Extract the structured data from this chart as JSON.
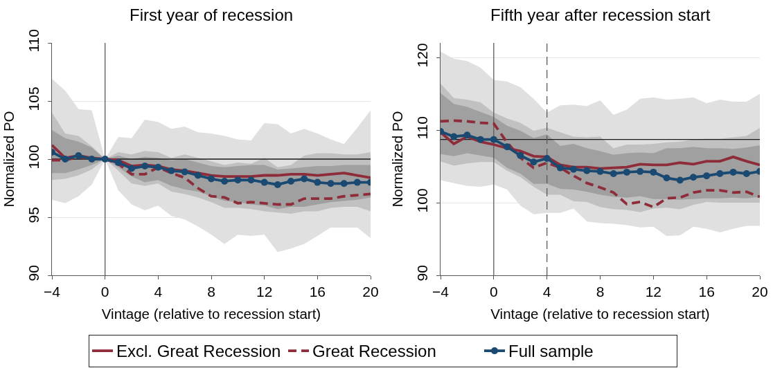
{
  "chart_data": [
    {
      "type": "line",
      "title": "First year of recession",
      "xlabel": "Vintage (relative to recession start)",
      "ylabel": "Normalized PO",
      "x": [
        -4,
        -3,
        -2,
        -1,
        0,
        1,
        2,
        3,
        4,
        5,
        6,
        7,
        8,
        9,
        10,
        11,
        12,
        13,
        14,
        15,
        16,
        17,
        18,
        19,
        20
      ],
      "xlim": [
        -4,
        20
      ],
      "xticks": [
        {
          "value": -4,
          "label": "−4"
        },
        0,
        4,
        8,
        12,
        16,
        20
      ],
      "ylim": [
        90,
        110
      ],
      "yticks": [
        90,
        95,
        100,
        105,
        110
      ],
      "grid": "y",
      "legend": "bottom",
      "ref_lines": [
        {
          "axis": "y",
          "value": 100,
          "color": "#1a1a1a",
          "line_style": "solid"
        },
        {
          "axis": "x",
          "value": 0,
          "color": "#5a5a5a",
          "line_style": "solid"
        }
      ],
      "series": [
        {
          "type": "area",
          "color": "#e0e0e0",
          "values": [
            null,
            null,
            null,
            null,
            null,
            null,
            null,
            null,
            null,
            null,
            null,
            null,
            null,
            null,
            null,
            null,
            null,
            null,
            null,
            null,
            null,
            null,
            null,
            null,
            null
          ],
          "upper": [
            106.9,
            105.9,
            104.3,
            104.2,
            100,
            101.9,
            101.8,
            103.4,
            103.2,
            102.6,
            102.8,
            102.3,
            102.2,
            102.0,
            101.7,
            101.6,
            103.1,
            103.0,
            102.2,
            102.6,
            102.2,
            101.7,
            101.3,
            102.7,
            104.2
          ],
          "lower": [
            96.5,
            96.2,
            96.8,
            97.8,
            100,
            97.3,
            96.1,
            95.6,
            96.0,
            95.1,
            94.8,
            94.2,
            93.5,
            92.7,
            93.5,
            93.4,
            93.5,
            92.0,
            92.3,
            92.7,
            93.4,
            94.1,
            94.1,
            94.1,
            93.2
          ]
        },
        {
          "type": "area",
          "color": "#c1c1c1",
          "values": [
            null,
            null,
            null,
            null,
            null,
            null,
            null,
            null,
            null,
            null,
            null,
            null,
            null,
            null,
            null,
            null,
            null,
            null,
            null,
            null,
            null,
            null,
            null,
            null,
            null
          ],
          "upper": [
            104.0,
            102.2,
            102.0,
            101.1,
            100,
            100.6,
            100.4,
            100.7,
            100.6,
            100.1,
            100.4,
            100.1,
            99.8,
            99.5,
            99.7,
            99.6,
            100.1,
            99.3,
            99.5,
            100.3,
            100.5,
            100.5,
            100.4,
            100.4,
            100.6
          ],
          "lower": [
            98.2,
            98.3,
            98.6,
            99.1,
            100,
            99.0,
            97.9,
            97.7,
            97.9,
            97.2,
            97.0,
            96.7,
            96.3,
            95.8,
            95.8,
            95.7,
            95.5,
            95.4,
            95.3,
            95.5,
            95.5,
            95.8,
            95.9,
            95.9,
            95.5
          ]
        },
        {
          "type": "area",
          "color": "#a0a0a0",
          "values": [
            null,
            null,
            null,
            null,
            null,
            null,
            null,
            null,
            null,
            null,
            null,
            null,
            null,
            null,
            null,
            null,
            null,
            null,
            null,
            null,
            null,
            null,
            null,
            null,
            null
          ],
          "upper": [
            102.5,
            101.8,
            101.5,
            101.0,
            100,
            100.3,
            100.0,
            100.2,
            100.1,
            99.9,
            100.0,
            99.7,
            99.4,
            99.3,
            99.4,
            99.5,
            99.5,
            99.1,
            99.2,
            99.3,
            99.4,
            99.4,
            99.5,
            99.5,
            99.5
          ],
          "lower": [
            98.8,
            98.8,
            99.1,
            99.5,
            100,
            99.3,
            98.5,
            98.0,
            98.2,
            97.7,
            97.4,
            97.2,
            96.8,
            96.4,
            96.3,
            96.1,
            96.0,
            95.7,
            95.9,
            95.9,
            96.1,
            96.3,
            96.4,
            96.5,
            96.7
          ]
        },
        {
          "name": "Excl. Great Recession",
          "color": "#8e2c3a",
          "line_style": "solid",
          "values": [
            101.2,
            100.1,
            100.3,
            100.1,
            100,
            99.9,
            99.4,
            99.5,
            99.4,
            99.1,
            99.0,
            98.8,
            98.6,
            98.5,
            98.5,
            98.5,
            98.6,
            98.6,
            98.7,
            98.7,
            98.6,
            98.7,
            98.8,
            98.6,
            98.4
          ]
        },
        {
          "name": "Great Recession",
          "color": "#8e2c3a",
          "line_style": "dashed",
          "values": [
            99.9,
            99.9,
            100.2,
            100,
            100,
            99.6,
            98.7,
            98.7,
            99.3,
            98.8,
            98.4,
            97.5,
            96.8,
            96.7,
            96.2,
            96.3,
            96.2,
            96.1,
            96.1,
            96.6,
            96.6,
            96.6,
            96.8,
            96.9,
            97.0
          ]
        },
        {
          "name": "Full sample",
          "color": "#1a4a72",
          "line_style": "solid",
          "marker": "circle",
          "values": [
            100.6,
            100.0,
            100.3,
            100.0,
            100,
            99.7,
            99.2,
            99.4,
            99.3,
            99.0,
            98.9,
            98.6,
            98.3,
            98.1,
            98.2,
            98.2,
            98.0,
            97.8,
            98.1,
            98.3,
            98.0,
            97.9,
            97.9,
            98.0,
            98.0
          ]
        }
      ]
    },
    {
      "type": "line",
      "title": "Fifth year after recession start",
      "xlabel": "Vintage (relative to recession start)",
      "ylabel": "Normalized PO",
      "x": [
        -4,
        -3,
        -2,
        -1,
        0,
        1,
        2,
        3,
        4,
        5,
        6,
        7,
        8,
        9,
        10,
        11,
        12,
        13,
        14,
        15,
        16,
        17,
        18,
        19,
        20
      ],
      "xlim": [
        -4,
        20
      ],
      "xticks": [
        {
          "value": -4,
          "label": "−4"
        },
        0,
        4,
        8,
        12,
        16,
        20
      ],
      "ylim": [
        90,
        122
      ],
      "yticks": [
        90,
        100,
        110,
        120
      ],
      "grid": "y",
      "ref_lines": [
        {
          "axis": "y",
          "value": 108.7,
          "color": "#1a1a1a",
          "line_style": "solid"
        },
        {
          "axis": "x",
          "value": 0,
          "color": "#5a5a5a",
          "line_style": "solid"
        },
        {
          "axis": "x",
          "value": 4,
          "color": "#5a5a5a",
          "line_style": "dashed"
        }
      ],
      "series": [
        {
          "type": "area",
          "color": "#e0e0e0",
          "values": [
            null,
            null,
            null,
            null,
            null,
            null,
            null,
            null,
            null,
            null,
            null,
            null,
            null,
            null,
            null,
            null,
            null,
            null,
            null,
            null,
            null,
            null,
            null,
            null,
            null
          ],
          "upper": [
            120.8,
            119.8,
            119.5,
            118.6,
            116.9,
            116.7,
            115.9,
            114.3,
            112.4,
            113.4,
            113.5,
            113.3,
            114.1,
            112.1,
            112.8,
            114.3,
            114.5,
            114.2,
            114.3,
            114.5,
            113.7,
            114.2,
            113.9,
            113.9,
            115.0
          ],
          "lower": [
            103.1,
            102.7,
            102.3,
            102.2,
            102.5,
            101.8,
            99.6,
            98.4,
            98.6,
            98.6,
            99.2,
            97.4,
            97.2,
            97.1,
            96.9,
            96.6,
            96.7,
            95.4,
            95.5,
            96.7,
            96.4,
            95.9,
            96.4,
            96.8,
            96.8
          ]
        },
        {
          "type": "area",
          "color": "#c1c1c1",
          "values": [
            null,
            null,
            null,
            null,
            null,
            null,
            null,
            null,
            null,
            null,
            null,
            null,
            null,
            null,
            null,
            null,
            null,
            null,
            null,
            null,
            null,
            null,
            null,
            null,
            null
          ],
          "upper": [
            116.4,
            114.4,
            114.2,
            113.8,
            112.4,
            111.6,
            111.0,
            109.9,
            110.3,
            109.7,
            109.1,
            109.0,
            109.1,
            107.5,
            108.0,
            108.0,
            108.1,
            108.3,
            108.4,
            108.7,
            108.8,
            108.8,
            109.0,
            109.2,
            110.3
          ],
          "lower": [
            105.7,
            105.1,
            105.4,
            105.6,
            105.6,
            104.4,
            103.5,
            102.2,
            101.1,
            101.1,
            100.2,
            100.1,
            99.4,
            99.1,
            99.0,
            98.7,
            99.2,
            99.3,
            99.1,
            99.7,
            100.1,
            100.0,
            100.0,
            100.0,
            100.0
          ]
        },
        {
          "type": "area",
          "color": "#a0a0a0",
          "values": [
            null,
            null,
            null,
            null,
            null,
            null,
            null,
            null,
            null,
            null,
            null,
            null,
            null,
            null,
            null,
            null,
            null,
            null,
            null,
            null,
            null,
            null,
            null,
            null,
            null
          ],
          "upper": [
            115.1,
            113.6,
            113.2,
            112.5,
            111.8,
            110.6,
            109.9,
            108.9,
            109.4,
            107.8,
            108.1,
            107.5,
            107.1,
            106.6,
            106.8,
            106.9,
            106.8,
            107.5,
            107.5,
            107.7,
            107.5,
            107.5,
            107.4,
            107.6,
            107.9
          ],
          "lower": [
            106.7,
            106.4,
            106.8,
            106.5,
            106.2,
            104.8,
            104.0,
            102.6,
            102.6,
            101.9,
            101.8,
            101.5,
            101.1,
            100.8,
            100.7,
            100.9,
            100.5,
            100.5,
            100.4,
            100.5,
            100.6,
            100.6,
            100.7,
            100.6,
            100.8
          ]
        },
        {
          "color": "#8e2c3a",
          "line_style": "solid",
          "values": [
            109.7,
            108.1,
            109.1,
            108.4,
            108.0,
            107.5,
            107.1,
            106.4,
            106.3,
            105.2,
            104.9,
            104.9,
            104.7,
            104.8,
            104.9,
            105.3,
            105.2,
            105.2,
            105.5,
            105.3,
            105.7,
            105.7,
            106.3,
            105.7,
            105.2
          ]
        },
        {
          "color": "#8e2c3a",
          "line_style": "dashed",
          "values": [
            111.2,
            111.3,
            111.2,
            111.0,
            110.9,
            108.3,
            106.2,
            104.8,
            105.5,
            104.8,
            103.7,
            102.7,
            102.1,
            101.4,
            99.8,
            100.1,
            99.4,
            100.6,
            100.7,
            101.4,
            101.7,
            101.7,
            101.4,
            101.5,
            100.8
          ]
        },
        {
          "color": "#1a4a72",
          "line_style": "solid",
          "marker": "circle",
          "values": [
            109.8,
            109.1,
            109.3,
            108.7,
            108.7,
            107.7,
            106.5,
            105.6,
            106.1,
            104.8,
            104.6,
            104.4,
            104.3,
            104.0,
            104.2,
            104.3,
            104.2,
            103.4,
            103.1,
            103.5,
            103.7,
            104.0,
            104.2,
            104.0,
            104.3
          ]
        }
      ]
    }
  ]
}
